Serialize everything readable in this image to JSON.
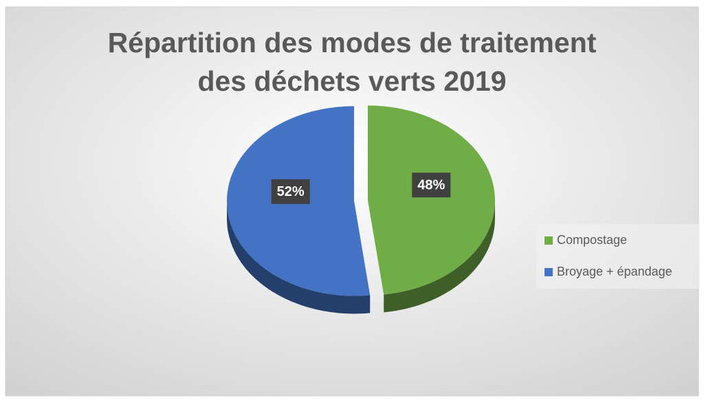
{
  "chart_data": {
    "type": "pie",
    "title": "Répartition des modes de traitement des déchets verts 2019",
    "categories": [
      "Compostage",
      "Broyage + épandage"
    ],
    "values": [
      48,
      52
    ],
    "value_labels": [
      "48%",
      "52%"
    ],
    "colors": [
      "#70ad47",
      "#4472c4"
    ],
    "legend": "right"
  }
}
